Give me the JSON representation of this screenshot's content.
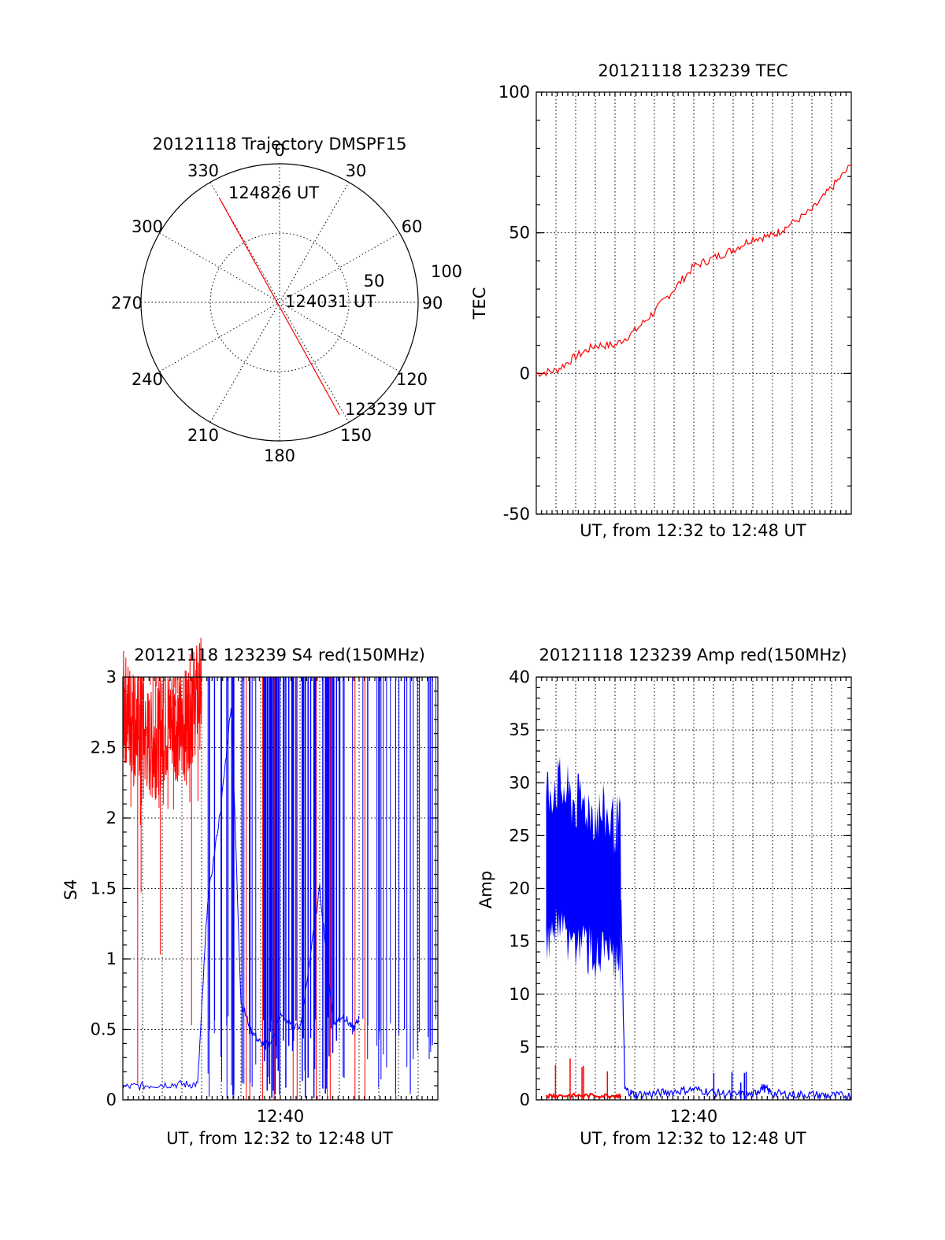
{
  "colors": {
    "red": "#ff0000",
    "blue": "#0000ff",
    "axes": "#000000",
    "background": "#ffffff"
  },
  "chart_data": [
    {
      "type": "polar",
      "title": "20121118 Trajectory DMSPF15",
      "angle_labels": [
        "0",
        "30",
        "60",
        "90",
        "120",
        "150",
        "180",
        "210",
        "240",
        "270",
        "300",
        "330"
      ],
      "radial_labels": [
        "50",
        "100"
      ],
      "radial_range": [
        0,
        100
      ],
      "grid": true,
      "trajectory": {
        "color": "#ff0000",
        "start": {
          "label": "123239 UT",
          "azimuth": 152,
          "radius": 92
        },
        "mid": {
          "label": "124031 UT",
          "azimuth": 0,
          "radius": 0
        },
        "end": {
          "label": "124826 UT",
          "azimuth": 330,
          "radius": 87
        }
      }
    },
    {
      "type": "line",
      "title": "20121118 123239 TEC",
      "xlabel": "UT, from 12:32 to 12:48 UT",
      "ylabel": "TEC",
      "xlim": [
        0,
        16
      ],
      "ylim": [
        -50,
        100
      ],
      "yticks": [
        "-50",
        "0",
        "50",
        "100"
      ],
      "grid": true,
      "series": [
        {
          "color": "#ff0000",
          "x": [
            0,
            1,
            2,
            3,
            4,
            5,
            6,
            7,
            8,
            9,
            10,
            11,
            12,
            12.7,
            14,
            15,
            16
          ],
          "y": [
            0,
            1,
            6,
            10,
            10,
            15,
            22,
            30,
            38,
            41,
            44,
            48,
            49,
            52,
            58,
            66,
            74
          ]
        }
      ]
    },
    {
      "type": "line",
      "title": "20121118 123239 S4 red(150MHz)",
      "xlabel": "UT, from 12:32 to 12:48 UT",
      "ylabel": "S4",
      "xticks": [
        "12:40"
      ],
      "xlim": [
        0,
        16
      ],
      "ylim": [
        0,
        3
      ],
      "yticks": [
        "0",
        "0.5",
        "1",
        "1.5",
        "2",
        "2.5",
        "3"
      ],
      "grid": true,
      "series": [
        {
          "color": "#ff0000",
          "x": [
            0,
            0.5,
            1,
            1.5,
            2,
            2.5,
            3,
            3.5,
            4
          ],
          "y": [
            2.8,
            2.7,
            2.6,
            2.5,
            2.6,
            2.7,
            2.6,
            2.8,
            2.9
          ]
        },
        {
          "color": "#0000ff",
          "x": [
            0,
            1,
            2,
            3,
            3.8,
            4.3,
            5,
            5.5,
            6,
            6.5,
            7,
            7.5,
            8,
            9,
            10,
            10.7,
            11.2,
            11.7,
            12
          ],
          "y": [
            0.09,
            0.1,
            0.11,
            0.11,
            0.11,
            1.4,
            2.1,
            2.8,
            0.7,
            0.5,
            0.4,
            0.4,
            0.6,
            0.5,
            1.5,
            0.55,
            0.6,
            0.5,
            0.58
          ]
        }
      ]
    },
    {
      "type": "line",
      "title": "20121118 123239 Amp red(150MHz)",
      "xlabel": "UT, from 12:32 to 12:48 UT",
      "ylabel": "Amp",
      "xticks": [
        "12:40"
      ],
      "xlim": [
        0,
        16
      ],
      "ylim": [
        0,
        40
      ],
      "yticks": [
        "0",
        "5",
        "10",
        "15",
        "20",
        "25",
        "30",
        "35",
        "40"
      ],
      "grid": true,
      "series": [
        {
          "color": "#0000ff",
          "x": [
            0.5,
            1,
            1.5,
            2,
            2.5,
            3,
            3.5,
            4,
            4.3,
            4.5,
            5,
            6,
            7,
            8,
            9,
            10,
            11,
            11.5,
            12,
            13,
            14,
            15,
            16
          ],
          "y": [
            22,
            23,
            22,
            21,
            21,
            20,
            20,
            19,
            19,
            1,
            0.5,
            0.6,
            0.8,
            1,
            0.7,
            0.5,
            0.5,
            1.2,
            0.6,
            0.5,
            0.5,
            0.4,
            0.4
          ]
        },
        {
          "color": "#ff0000",
          "x": [
            0.5,
            1,
            2,
            3,
            4,
            4.3
          ],
          "y": [
            0.4,
            0.4,
            0.4,
            0.4,
            0.4,
            0.4
          ]
        }
      ]
    }
  ]
}
